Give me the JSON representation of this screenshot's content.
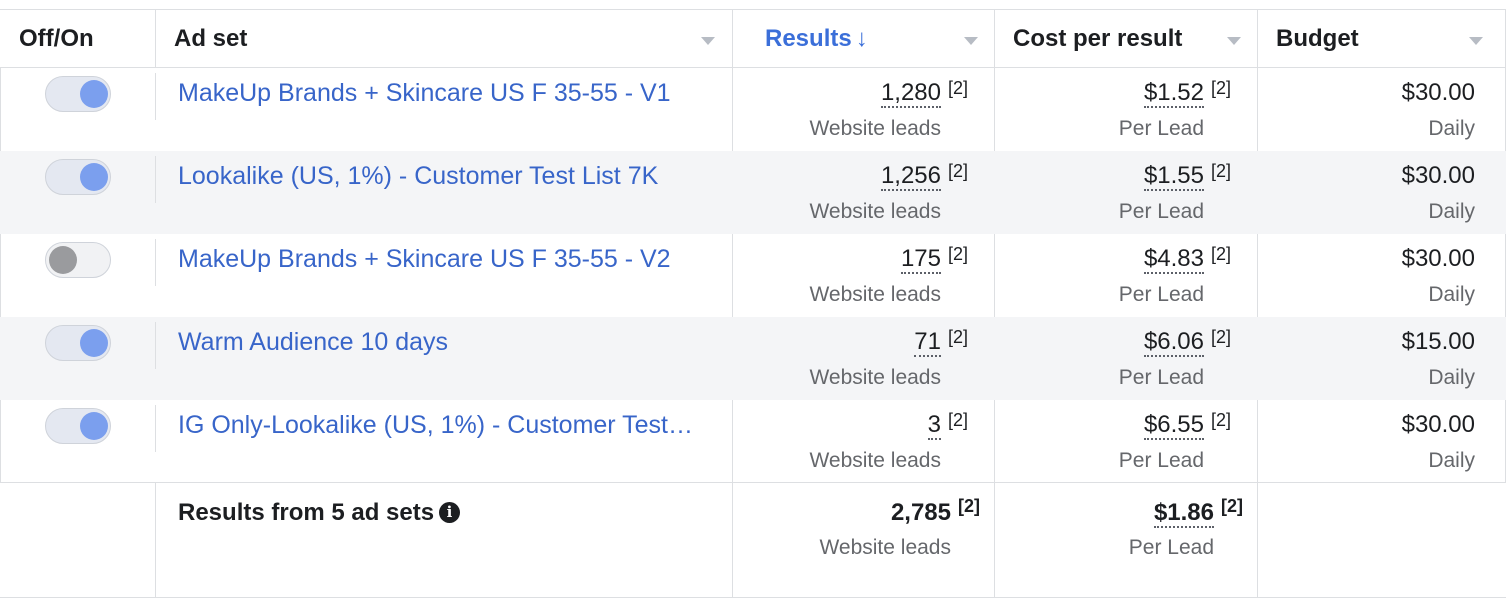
{
  "columns": {
    "toggle": "Off/On",
    "adset": "Ad set",
    "results": "Results",
    "results_sort": "↓",
    "cost": "Cost per result",
    "budget": "Budget"
  },
  "rows": [
    {
      "name": "MakeUp Brands + Skincare US F 35-55 - V1",
      "on": true,
      "results": "1,280",
      "results_note": "[2]",
      "results_sub": "Website leads",
      "cost": "$1.52",
      "cost_note": "[2]",
      "cost_sub": "Per Lead",
      "budget": "$30.00",
      "budget_sub": "Daily"
    },
    {
      "name": "Lookalike (US, 1%) - Customer Test List 7K",
      "on": true,
      "results": "1,256",
      "results_note": "[2]",
      "results_sub": "Website leads",
      "cost": "$1.55",
      "cost_note": "[2]",
      "cost_sub": "Per Lead",
      "budget": "$30.00",
      "budget_sub": "Daily"
    },
    {
      "name": "MakeUp Brands + Skincare US F 35-55 - V2",
      "on": false,
      "results": "175",
      "results_note": "[2]",
      "results_sub": "Website leads",
      "cost": "$4.83",
      "cost_note": "[2]",
      "cost_sub": "Per Lead",
      "budget": "$30.00",
      "budget_sub": "Daily"
    },
    {
      "name": "Warm Audience 10 days",
      "on": true,
      "results": "71",
      "results_note": "[2]",
      "results_sub": "Website leads",
      "cost": "$6.06",
      "cost_note": "[2]",
      "cost_sub": "Per Lead",
      "budget": "$15.00",
      "budget_sub": "Daily"
    },
    {
      "name": "IG Only-Lookalike (US, 1%) - Customer Test…",
      "on": true,
      "results": "3",
      "results_note": "[2]",
      "results_sub": "Website leads",
      "cost": "$6.55",
      "cost_note": "[2]",
      "cost_sub": "Per Lead",
      "budget": "$30.00",
      "budget_sub": "Daily"
    }
  ],
  "footer": {
    "label": "Results from 5 ad sets",
    "info_icon": "info-icon",
    "results": "2,785",
    "results_note": "[2]",
    "results_sub": "Website leads",
    "cost": "$1.86",
    "cost_note": "[2]",
    "cost_sub": "Per Lead"
  },
  "colors": {
    "link": "#3865c9",
    "active_header": "#3b6fd9",
    "toggle_on": "#7b9fee",
    "toggle_off": "#9a9b9e",
    "alt_row": "#f4f5f7"
  }
}
